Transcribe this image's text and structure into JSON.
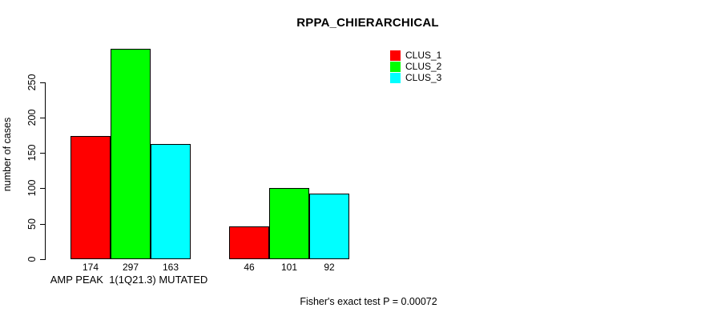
{
  "chart_data": {
    "type": "bar",
    "title": "RPPA_CHIERARCHICAL",
    "ylabel": "number of cases",
    "xlabel": "",
    "yticks": [
      0,
      50,
      100,
      150,
      200,
      250
    ],
    "ylim": [
      0,
      300
    ],
    "grid": false,
    "legend_position": "top-right",
    "categories": [
      "AMP PEAK  1(1Q21.3) MUTATED",
      ""
    ],
    "series": [
      {
        "name": "CLUS_1",
        "color": "#ff0000",
        "values": [
          174,
          46
        ]
      },
      {
        "name": "CLUS_2",
        "color": "#00ff00",
        "values": [
          297,
          101
        ]
      },
      {
        "name": "CLUS_3",
        "color": "#00ffff",
        "values": [
          163,
          92
        ]
      }
    ],
    "bar_value_labels": [
      [
        174,
        297,
        163
      ],
      [
        46,
        101,
        92
      ]
    ],
    "annotation": "Fisher's exact test P = 0.00072",
    "colors": {
      "bar_border": "#000000",
      "text": "#000000",
      "background": "#ffffff"
    }
  }
}
